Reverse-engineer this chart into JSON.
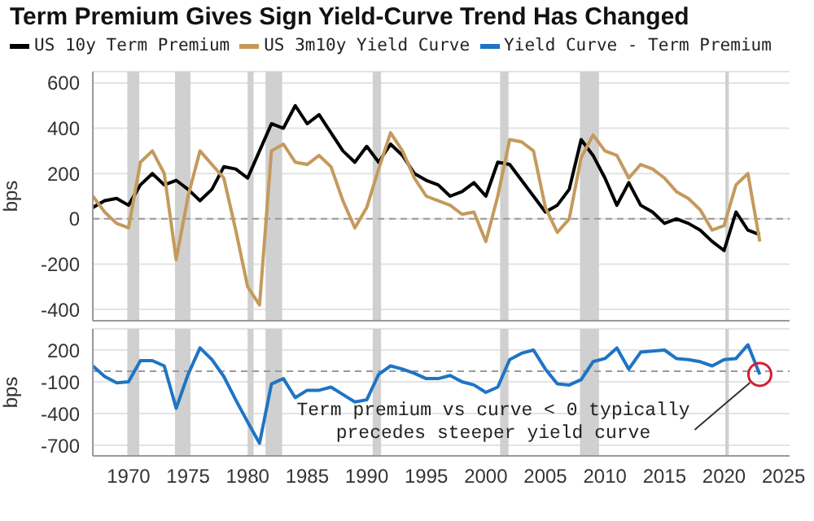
{
  "chart_data": [
    {
      "type": "line",
      "title": "Term Premium Gives Sign Yield-Curve Trend Has Changed",
      "ylabel": "bps",
      "legend": "top",
      "grid": "y",
      "tick_labels": "y",
      "marker": "none",
      "line_style": "solid",
      "xlim": [
        1967,
        2025.5
      ],
      "ylim": [
        -450,
        650
      ],
      "yticks": [
        -400,
        -200,
        0,
        200,
        400,
        600
      ],
      "bands": [
        {
          "axis": "x",
          "from": 1969.9,
          "to": 1970.9,
          "color": "#d0d0d0"
        },
        {
          "axis": "x",
          "from": 1973.9,
          "to": 1975.2,
          "color": "#d0d0d0"
        },
        {
          "axis": "x",
          "from": 1980,
          "to": 1980.5,
          "color": "#d0d0d0"
        },
        {
          "axis": "x",
          "from": 1981.5,
          "to": 1982.9,
          "color": "#d0d0d0"
        },
        {
          "axis": "x",
          "from": 1990.5,
          "to": 1991.2,
          "color": "#d0d0d0"
        },
        {
          "axis": "x",
          "from": 2001.2,
          "to": 2001.9,
          "color": "#d0d0d0"
        },
        {
          "axis": "x",
          "from": 2007.9,
          "to": 2009.5,
          "color": "#d0d0d0"
        },
        {
          "axis": "x",
          "from": 2020.1,
          "to": 2020.4,
          "color": "#d0d0d0"
        }
      ],
      "ref_lines": [
        {
          "axis": "y",
          "value": 0,
          "color": "#999999",
          "line_style": "dashed"
        }
      ],
      "x": [
        1967,
        1968,
        1969,
        1970,
        1971,
        1972,
        1973,
        1974,
        1975,
        1976,
        1977,
        1978,
        1979,
        1980,
        1981,
        1982,
        1983,
        1984,
        1985,
        1986,
        1987,
        1988,
        1989,
        1990,
        1991,
        1992,
        1993,
        1994,
        1995,
        1996,
        1997,
        1998,
        1999,
        2000,
        2001,
        2002,
        2003,
        2004,
        2005,
        2006,
        2007,
        2008,
        2009,
        2010,
        2011,
        2012,
        2013,
        2014,
        2015,
        2016,
        2017,
        2018,
        2019,
        2020,
        2021,
        2022,
        2023
      ],
      "series": [
        {
          "name": "US 10y Term Premium",
          "color": "#000000",
          "values": [
            50,
            80,
            90,
            60,
            150,
            200,
            150,
            170,
            130,
            80,
            130,
            230,
            220,
            180,
            300,
            420,
            400,
            500,
            420,
            460,
            380,
            300,
            250,
            320,
            250,
            330,
            280,
            200,
            170,
            150,
            100,
            120,
            160,
            100,
            250,
            240,
            170,
            100,
            30,
            60,
            130,
            350,
            280,
            180,
            60,
            160,
            60,
            30,
            -20,
            0,
            -20,
            -50,
            -100,
            -140,
            30,
            -50,
            -70
          ]
        },
        {
          "name": "US 3m10y Yield Curve",
          "color": "#c49a5c",
          "values": [
            100,
            30,
            -20,
            -40,
            250,
            300,
            200,
            -180,
            100,
            300,
            240,
            180,
            -50,
            -300,
            -380,
            300,
            330,
            250,
            240,
            280,
            230,
            80,
            -40,
            50,
            220,
            380,
            300,
            180,
            100,
            80,
            60,
            20,
            30,
            -100,
            100,
            350,
            340,
            300,
            50,
            -60,
            0,
            270,
            370,
            300,
            280,
            180,
            240,
            220,
            180,
            120,
            90,
            40,
            -50,
            -30,
            150,
            200,
            -100
          ]
        }
      ]
    },
    {
      "type": "line",
      "ylabel": "bps",
      "legend": "top",
      "grid": "y",
      "marker": "none",
      "line_style": "solid",
      "xlim": [
        1967,
        2025.5
      ],
      "xticks": [
        1970,
        1975,
        1980,
        1985,
        1990,
        1995,
        2000,
        2005,
        2010,
        2015,
        2020,
        2025
      ],
      "ylim": [
        -800,
        400
      ],
      "yticks": [
        -700,
        -400,
        -100,
        200
      ],
      "bands": [
        {
          "axis": "x",
          "from": 1969.9,
          "to": 1970.9,
          "color": "#d0d0d0"
        },
        {
          "axis": "x",
          "from": 1973.9,
          "to": 1975.2,
          "color": "#d0d0d0"
        },
        {
          "axis": "x",
          "from": 1980,
          "to": 1980.5,
          "color": "#d0d0d0"
        },
        {
          "axis": "x",
          "from": 1981.5,
          "to": 1982.9,
          "color": "#d0d0d0"
        },
        {
          "axis": "x",
          "from": 1990.5,
          "to": 1991.2,
          "color": "#d0d0d0"
        },
        {
          "axis": "x",
          "from": 2001.2,
          "to": 2001.9,
          "color": "#d0d0d0"
        },
        {
          "axis": "x",
          "from": 2007.9,
          "to": 2009.5,
          "color": "#d0d0d0"
        },
        {
          "axis": "x",
          "from": 2020.1,
          "to": 2020.4,
          "color": "#d0d0d0"
        }
      ],
      "ref_lines": [
        {
          "axis": "y",
          "value": 0,
          "color": "#999999",
          "line_style": "dashed"
        }
      ],
      "annotations": [
        {
          "text": "Term premium vs curve < 0 typically precedes steeper yield curve",
          "x": 2023,
          "y": -30
        }
      ],
      "x": [
        1967,
        1968,
        1969,
        1970,
        1971,
        1972,
        1973,
        1974,
        1975,
        1976,
        1977,
        1978,
        1979,
        1980,
        1981,
        1982,
        1983,
        1984,
        1985,
        1986,
        1987,
        1988,
        1989,
        1990,
        1991,
        1992,
        1993,
        1994,
        1995,
        1996,
        1997,
        1998,
        1999,
        2000,
        2001,
        2002,
        2003,
        2004,
        2005,
        2006,
        2007,
        2008,
        2009,
        2010,
        2011,
        2012,
        2013,
        2014,
        2015,
        2016,
        2017,
        2018,
        2019,
        2020,
        2021,
        2022,
        2023
      ],
      "series": [
        {
          "name": "Yield Curve - Term Premium",
          "color": "#1f74c4",
          "values": [
            50,
            -50,
            -110,
            -100,
            100,
            100,
            50,
            -350,
            -30,
            220,
            110,
            -50,
            -270,
            -480,
            -680,
            -120,
            -70,
            -250,
            -180,
            -180,
            -150,
            -220,
            -290,
            -270,
            -30,
            50,
            20,
            -20,
            -70,
            -70,
            -40,
            -100,
            -130,
            -200,
            -150,
            110,
            170,
            200,
            20,
            -120,
            -130,
            -80,
            90,
            120,
            220,
            20,
            180,
            190,
            200,
            120,
            110,
            90,
            50,
            110,
            120,
            250,
            -30
          ]
        }
      ]
    }
  ]
}
